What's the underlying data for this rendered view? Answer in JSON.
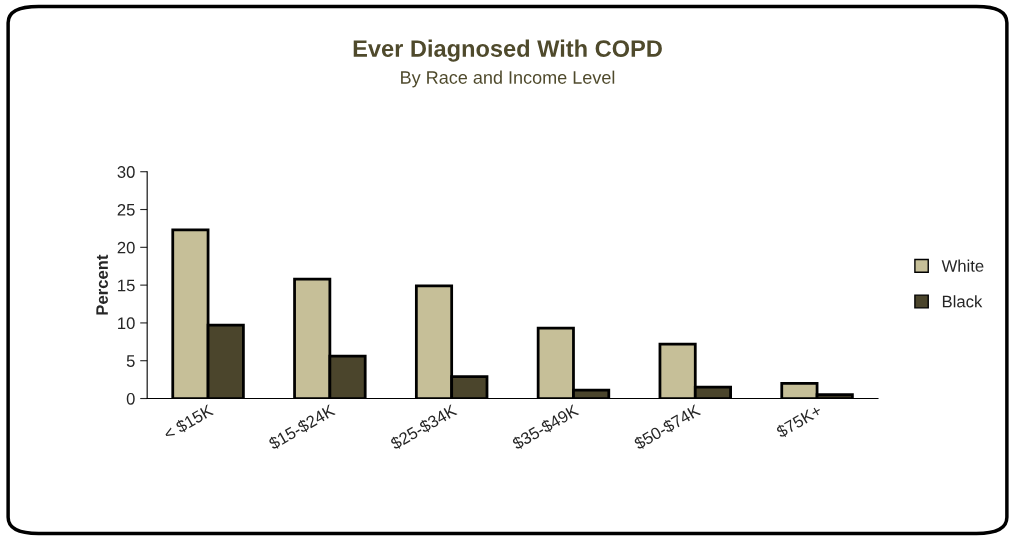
{
  "chart_data": {
    "type": "bar",
    "title": "Ever Diagnosed With COPD",
    "subtitle": "By Race and Income Level",
    "ylabel": "Percent",
    "categories": [
      "< $15K",
      "$15-$24K",
      "$25-$34K",
      "$35-$49K",
      "$50-$74K",
      "$75K+"
    ],
    "series": [
      {
        "name": "White",
        "color": "#c6bf98",
        "values": [
          22.3,
          15.8,
          14.9,
          9.3,
          7.2,
          2.0
        ]
      },
      {
        "name": "Black",
        "color": "#4b452c",
        "values": [
          9.7,
          5.6,
          2.9,
          1.1,
          1.5,
          0.5
        ]
      }
    ],
    "ylim": [
      0,
      30
    ],
    "yticks": [
      0,
      5,
      10,
      15,
      20,
      25,
      30
    ],
    "grid": false,
    "legend": "right"
  }
}
